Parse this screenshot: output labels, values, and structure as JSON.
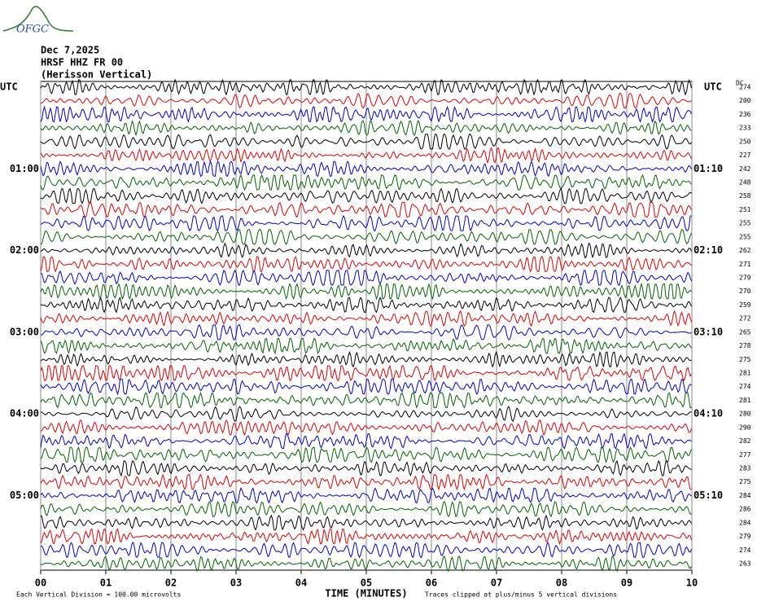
{
  "chart_data": {
    "type": "helicorder",
    "logo": "OFGC",
    "title_lines": [
      "Dec 7,2025",
      "HRSF HHZ FR 00",
      "(Herisson Vertical)"
    ],
    "left_axis_title": "UTC",
    "right_axis_title": "UTC",
    "dc_title": "DC",
    "xlabel": "TIME (MINUTES)",
    "xlim": [
      0,
      10
    ],
    "xticks": [
      {
        "value": 0,
        "label": "00"
      },
      {
        "value": 1,
        "label": "01"
      },
      {
        "value": 2,
        "label": "02"
      },
      {
        "value": 3,
        "label": "03"
      },
      {
        "value": 4,
        "label": "04"
      },
      {
        "value": 5,
        "label": "05"
      },
      {
        "value": 6,
        "label": "06"
      },
      {
        "value": 7,
        "label": "07"
      },
      {
        "value": 8,
        "label": "08"
      },
      {
        "value": 9,
        "label": "09"
      },
      {
        "value": 10,
        "label": "10"
      }
    ],
    "trace_colors": [
      "#000000",
      "#e00000",
      "#0000d0",
      "#006400"
    ],
    "left_row_labels": [
      null,
      null,
      null,
      null,
      null,
      null,
      "01:00",
      null,
      null,
      null,
      null,
      null,
      "02:00",
      null,
      null,
      null,
      null,
      null,
      "03:00",
      null,
      null,
      null,
      null,
      null,
      "04:00",
      null,
      null,
      null,
      null,
      null,
      "05:00",
      null,
      null,
      null,
      null,
      null
    ],
    "right_row_labels": [
      null,
      null,
      null,
      null,
      null,
      null,
      "01:10",
      null,
      null,
      null,
      null,
      null,
      "02:10",
      null,
      null,
      null,
      null,
      null,
      "03:10",
      null,
      null,
      null,
      null,
      null,
      "04:10",
      null,
      null,
      null,
      null,
      null,
      "05:10",
      null,
      null,
      null,
      null,
      null
    ],
    "dc_values": [
      274,
      200,
      236,
      233,
      250,
      227,
      242,
      248,
      258,
      251,
      255,
      255,
      262,
      271,
      279,
      270,
      259,
      272,
      265,
      278,
      275,
      281,
      274,
      281,
      280,
      290,
      282,
      277,
      283,
      275,
      284,
      286,
      284,
      279,
      274,
      263
    ],
    "footer_left": "Each Vertical Division =  100.00 microvolts",
    "footer_right": "Traces clipped at plus/minus 5 vertical divisions"
  }
}
